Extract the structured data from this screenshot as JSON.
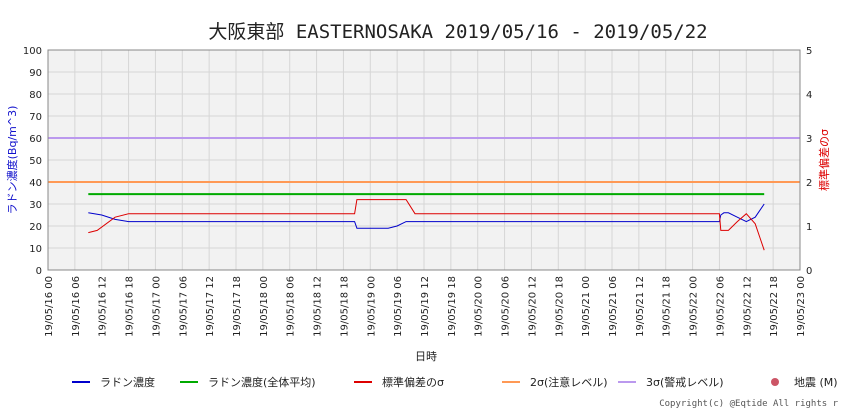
{
  "chart_data": {
    "type": "line",
    "title": "大阪東部 EASTERNOSAKA 2019/05/16 - 2019/05/22",
    "xlabel": "日時",
    "ylabel_left": "ラドン濃度(Bq/m^3)",
    "ylabel_right": "標準偏差のσ",
    "ylim_left": [
      0,
      100
    ],
    "ylim_right": [
      0,
      5
    ],
    "y_ticks_left": [
      "0",
      "10",
      "20",
      "30",
      "40",
      "50",
      "60",
      "70",
      "80",
      "90",
      "100"
    ],
    "y_ticks_right": [
      "0",
      "1",
      "2",
      "3",
      "4",
      "5"
    ],
    "x_range_hours": [
      0,
      168
    ],
    "x_tick_labels": [
      "19/05/16 00",
      "19/05/16 06",
      "19/05/16 12",
      "19/05/16 18",
      "19/05/17 00",
      "19/05/17 06",
      "19/05/17 12",
      "19/05/17 18",
      "19/05/18 00",
      "19/05/18 06",
      "19/05/18 12",
      "19/05/18 18",
      "19/05/19 00",
      "19/05/19 06",
      "19/05/19 12",
      "19/05/19 18",
      "19/05/20 00",
      "19/05/20 06",
      "19/05/20 12",
      "19/05/20 18",
      "19/05/21 00",
      "19/05/21 06",
      "19/05/21 12",
      "19/05/21 18",
      "19/05/22 00",
      "19/05/22 06",
      "19/05/22 12",
      "19/05/22 18",
      "19/05/23 00"
    ],
    "grid": true,
    "series": [
      {
        "name": "ラドン濃度",
        "color": "#0000cc",
        "axis": "left",
        "x": [
          9,
          12,
          15,
          18,
          24,
          36,
          48,
          60,
          66,
          68.5,
          69,
          70,
          76,
          78,
          80,
          84,
          96,
          108,
          120,
          132,
          144,
          150,
          150.3,
          151,
          152,
          154,
          156,
          158,
          160
        ],
        "y": [
          26,
          25,
          23,
          22,
          22,
          22,
          22,
          22,
          22,
          22,
          19,
          19,
          19,
          20,
          22,
          22,
          22,
          22,
          22,
          22,
          22,
          22,
          25,
          26,
          26,
          24,
          22,
          24,
          30
        ]
      },
      {
        "name": "ラドン濃度(全体平均)",
        "color": "#00aa00",
        "axis": "left",
        "x": [
          9,
          160
        ],
        "y": [
          34.5,
          34.5
        ]
      },
      {
        "name": "標準偏差のσ",
        "color": "#dd0000",
        "axis": "right",
        "x": [
          9,
          11,
          15,
          18,
          24,
          36,
          48,
          60,
          68.5,
          69,
          70,
          80,
          82,
          84,
          96,
          108,
          120,
          132,
          144,
          150,
          150.3,
          152,
          154,
          156,
          158,
          159,
          160
        ],
        "y": [
          0.85,
          0.9,
          1.2,
          1.28,
          1.28,
          1.28,
          1.28,
          1.28,
          1.28,
          1.6,
          1.6,
          1.6,
          1.28,
          1.28,
          1.28,
          1.28,
          1.28,
          1.28,
          1.28,
          1.28,
          0.9,
          0.9,
          1.1,
          1.28,
          1.05,
          0.75,
          0.45
        ]
      }
    ],
    "reference_lines": [
      {
        "name": "2σ(注意レベル)",
        "color": "#ff9955",
        "axis": "right",
        "value": 2
      },
      {
        "name": "3σ(警戒レベル)",
        "color": "#bb99ee",
        "axis": "right",
        "value": 3
      }
    ],
    "scatter_series": [
      {
        "name": "地震 (M)",
        "color": "#cc5566",
        "points": []
      }
    ],
    "legend_position": "bottom"
  },
  "legend": [
    {
      "label": "ラドン濃度",
      "color": "#0000cc",
      "marker": "line"
    },
    {
      "label": "ラドン濃度(全体平均)",
      "color": "#00aa00",
      "marker": "line"
    },
    {
      "label": "標準偏差のσ",
      "color": "#dd0000",
      "marker": "line"
    },
    {
      "label": "2σ(注意レベル)",
      "color": "#ff9955",
      "marker": "line"
    },
    {
      "label": "3σ(警戒レベル)",
      "color": "#bb99ee",
      "marker": "line"
    },
    {
      "label": "地震 (M)",
      "color": "#cc5566",
      "marker": "dot"
    }
  ],
  "copyright": "Copyright(c) @Eqtide All rights r"
}
